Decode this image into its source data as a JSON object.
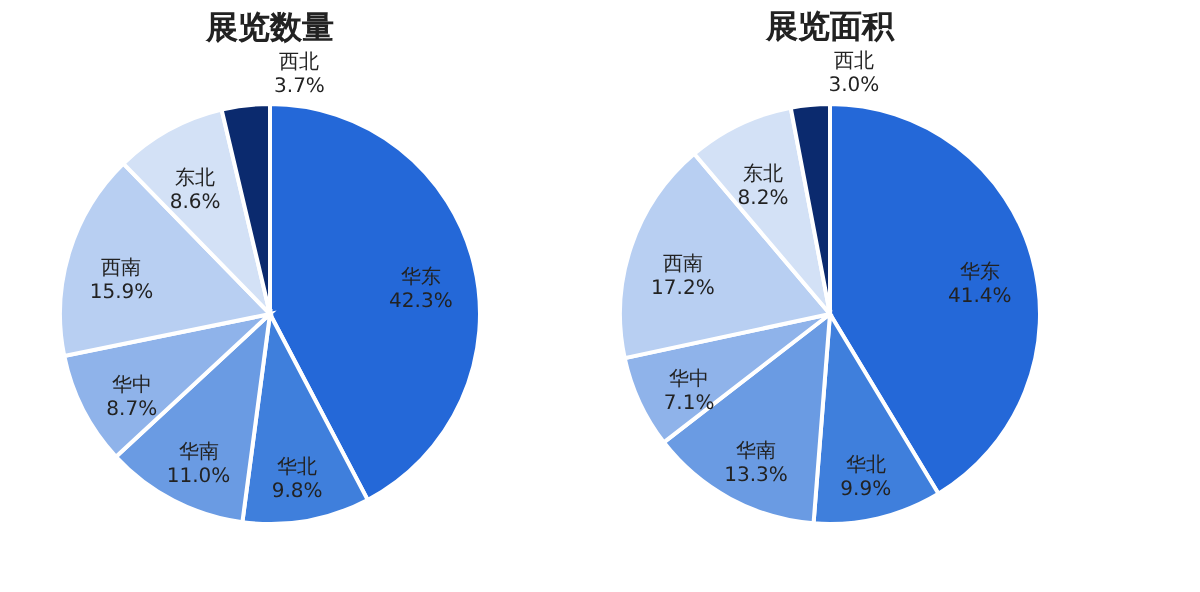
{
  "chart_data": [
    {
      "type": "pie",
      "title": "展览数量",
      "categories": [
        "华东",
        "华北",
        "华南",
        "华中",
        "西南",
        "东北",
        "西北"
      ],
      "values": [
        42.3,
        9.8,
        11.0,
        8.7,
        15.9,
        8.6,
        3.7
      ],
      "value_labels": [
        "42.3%",
        "9.8%",
        "11.0%",
        "8.7%",
        "15.9%",
        "8.6%",
        "3.7%"
      ],
      "colors": [
        "#2468d8",
        "#3f7fdc",
        "#6a9be3",
        "#8fb3ea",
        "#b8cff2",
        "#d3e1f6",
        "#0b2a6e"
      ]
    },
    {
      "type": "pie",
      "title": "展览面积",
      "categories": [
        "华东",
        "华北",
        "华南",
        "华中",
        "西南",
        "东北",
        "西北"
      ],
      "values": [
        41.4,
        9.9,
        13.3,
        7.1,
        17.2,
        8.2,
        3.0
      ],
      "value_labels": [
        "41.4%",
        "9.9%",
        "13.3%",
        "7.1%",
        "17.2%",
        "8.2%",
        "3.0%"
      ],
      "colors": [
        "#2468d8",
        "#3f7fdc",
        "#6a9be3",
        "#8fb3ea",
        "#b8cff2",
        "#d3e1f6",
        "#0b2a6e"
      ]
    }
  ]
}
